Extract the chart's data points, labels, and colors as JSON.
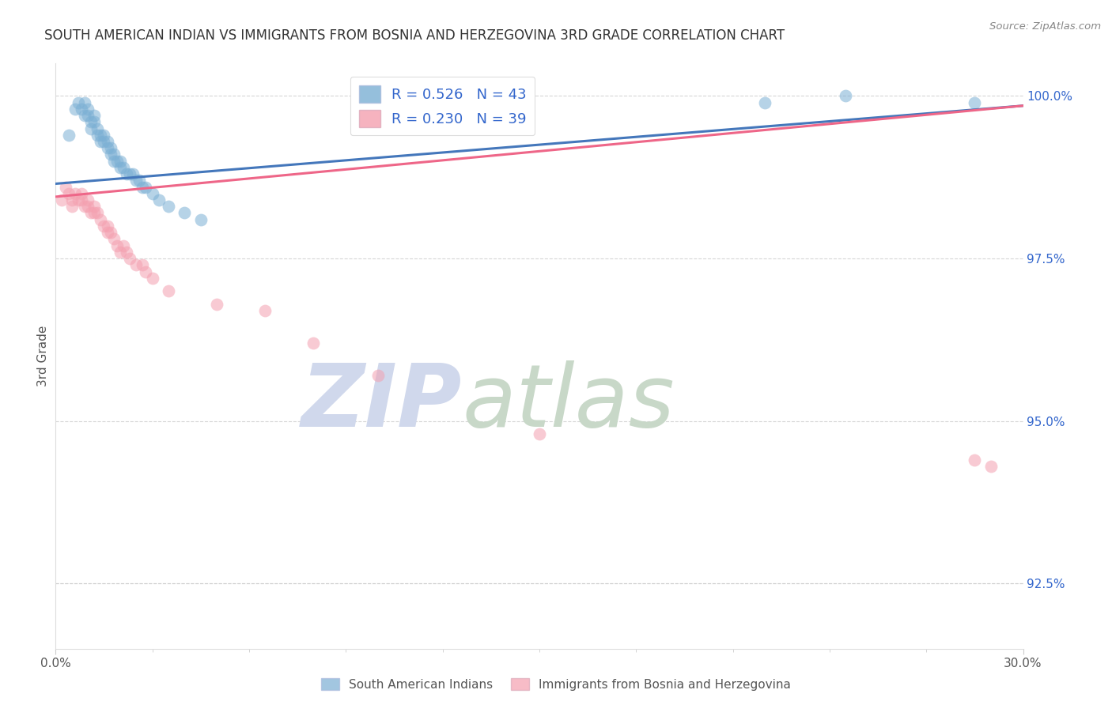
{
  "title": "SOUTH AMERICAN INDIAN VS IMMIGRANTS FROM BOSNIA AND HERZEGOVINA 3RD GRADE CORRELATION CHART",
  "source": "Source: ZipAtlas.com",
  "ylabel": "3rd Grade",
  "ylabel_right_ticks": [
    "100.0%",
    "97.5%",
    "95.0%",
    "92.5%"
  ],
  "ylabel_right_values": [
    1.0,
    0.975,
    0.95,
    0.925
  ],
  "xlim": [
    0.0,
    0.3
  ],
  "ylim": [
    0.915,
    1.005
  ],
  "blue_R": 0.526,
  "blue_N": 43,
  "pink_R": 0.23,
  "pink_N": 39,
  "blue_color": "#7BAFD4",
  "pink_color": "#F4A0B0",
  "blue_line_color": "#4477BB",
  "pink_line_color": "#EE6688",
  "legend_text_color": "#3366CC",
  "title_color": "#333333",
  "watermark_zip_color": "#D0D8EC",
  "watermark_atlas_color": "#C8D8C8",
  "grid_color": "#CCCCCC",
  "background_color": "#FFFFFF",
  "blue_scatter_x": [
    0.004,
    0.006,
    0.007,
    0.008,
    0.009,
    0.009,
    0.01,
    0.01,
    0.011,
    0.011,
    0.012,
    0.012,
    0.013,
    0.013,
    0.014,
    0.014,
    0.015,
    0.015,
    0.016,
    0.016,
    0.017,
    0.017,
    0.018,
    0.018,
    0.019,
    0.02,
    0.02,
    0.021,
    0.022,
    0.023,
    0.024,
    0.025,
    0.026,
    0.027,
    0.028,
    0.03,
    0.032,
    0.035,
    0.04,
    0.045,
    0.22,
    0.245,
    0.285
  ],
  "blue_scatter_y": [
    0.994,
    0.998,
    0.999,
    0.998,
    0.997,
    0.999,
    0.998,
    0.997,
    0.996,
    0.995,
    0.997,
    0.996,
    0.995,
    0.994,
    0.994,
    0.993,
    0.994,
    0.993,
    0.993,
    0.992,
    0.992,
    0.991,
    0.991,
    0.99,
    0.99,
    0.99,
    0.989,
    0.989,
    0.988,
    0.988,
    0.988,
    0.987,
    0.987,
    0.986,
    0.986,
    0.985,
    0.984,
    0.983,
    0.982,
    0.981,
    0.999,
    1.0,
    0.999
  ],
  "pink_scatter_x": [
    0.002,
    0.003,
    0.004,
    0.005,
    0.005,
    0.006,
    0.007,
    0.008,
    0.008,
    0.009,
    0.01,
    0.01,
    0.011,
    0.012,
    0.012,
    0.013,
    0.014,
    0.015,
    0.016,
    0.016,
    0.017,
    0.018,
    0.019,
    0.02,
    0.021,
    0.022,
    0.023,
    0.025,
    0.027,
    0.028,
    0.03,
    0.035,
    0.05,
    0.065,
    0.08,
    0.1,
    0.15,
    0.285,
    0.29
  ],
  "pink_scatter_y": [
    0.984,
    0.986,
    0.985,
    0.984,
    0.983,
    0.985,
    0.984,
    0.985,
    0.984,
    0.983,
    0.984,
    0.983,
    0.982,
    0.983,
    0.982,
    0.982,
    0.981,
    0.98,
    0.98,
    0.979,
    0.979,
    0.978,
    0.977,
    0.976,
    0.977,
    0.976,
    0.975,
    0.974,
    0.974,
    0.973,
    0.972,
    0.97,
    0.968,
    0.967,
    0.962,
    0.957,
    0.948,
    0.944,
    0.943
  ],
  "blue_trend_x": [
    0.0,
    0.3
  ],
  "blue_trend_y": [
    0.9865,
    0.9985
  ],
  "pink_trend_x": [
    0.0,
    0.3
  ],
  "pink_trend_y": [
    0.9845,
    0.9985
  ]
}
